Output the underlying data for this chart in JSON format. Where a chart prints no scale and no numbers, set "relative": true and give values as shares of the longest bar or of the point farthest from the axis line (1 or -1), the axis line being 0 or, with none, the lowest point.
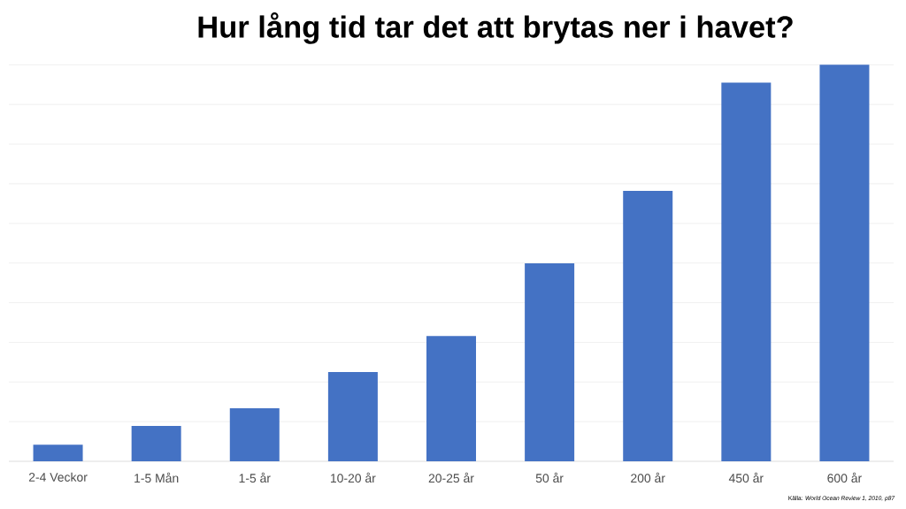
{
  "chart_data": {
    "type": "bar",
    "title": "Hur lång tid tar det att brytas ner i havet?",
    "categories": [
      "2-4 Veckor",
      "1-5 Mån",
      "1-5 år",
      "10-20 år",
      "20-25 år",
      "50 år",
      "200 år",
      "450 år",
      "600 år"
    ],
    "values": [
      0.042,
      0.089,
      0.134,
      0.225,
      0.316,
      0.499,
      0.682,
      0.955,
      1
    ],
    "relative": true,
    "color": "#4472c4",
    "grid": "y",
    "annotations": [
      "Källa: *World Ocean Review 1, 2010, p87*"
    ]
  }
}
